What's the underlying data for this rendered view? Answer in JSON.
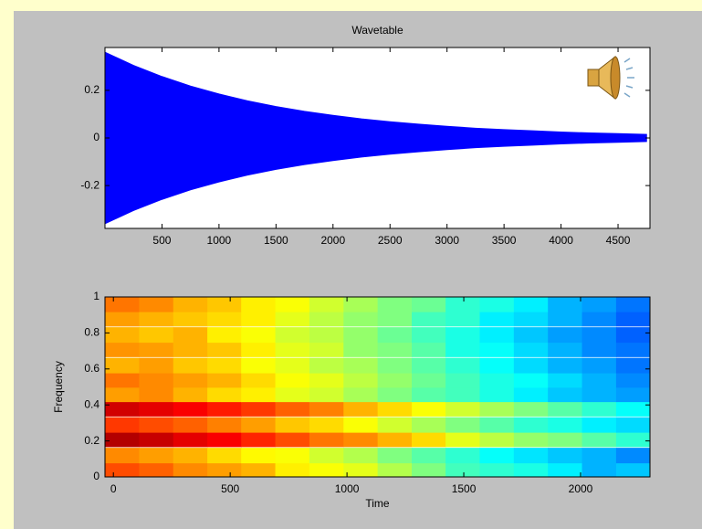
{
  "chart_data": [
    {
      "type": "line",
      "title": "Wavetable",
      "x": [
        0,
        250,
        500,
        750,
        1000,
        1250,
        1500,
        1750,
        2000,
        2250,
        2500,
        2750,
        3000,
        3250,
        3500,
        3750,
        4000,
        4250,
        4500,
        4750
      ],
      "series": [
        {
          "color": "#0000ff",
          "values": [
            0.36,
            0.305,
            0.258,
            0.218,
            0.185,
            0.156,
            0.132,
            0.112,
            0.095,
            0.08,
            0.068,
            0.058,
            0.049,
            0.041,
            0.035,
            0.03,
            0.025,
            0.021,
            0.018,
            0.015
          ]
        },
        {
          "color": "#0000ff",
          "values": [
            -0.36,
            -0.305,
            -0.258,
            -0.218,
            -0.185,
            -0.156,
            -0.132,
            -0.112,
            -0.095,
            -0.08,
            -0.068,
            -0.058,
            -0.049,
            -0.041,
            -0.035,
            -0.03,
            -0.025,
            -0.021,
            -0.018,
            -0.015
          ]
        }
      ],
      "xlim": [
        0,
        4780
      ],
      "ylim": [
        -0.38,
        0.38
      ],
      "xticks": [
        500,
        1000,
        1500,
        2000,
        2500,
        3000,
        3500,
        4000,
        4500
      ],
      "yticks": [
        -0.2,
        0,
        0.2
      ]
    },
    {
      "type": "heatmap",
      "xlabel": "Time",
      "ylabel": "Frequency",
      "x": [
        37,
        183,
        329,
        475,
        620,
        766,
        912,
        1058,
        1204,
        1350,
        1495,
        1641,
        1787,
        1933,
        2079,
        2225
      ],
      "y": [
        0.04,
        0.12,
        0.21,
        0.29,
        0.38,
        0.46,
        0.54,
        0.62,
        0.71,
        0.79,
        0.88,
        0.96
      ],
      "z": [
        [
          0.8,
          0.78,
          0.74,
          0.72,
          0.7,
          0.64,
          0.62,
          0.6,
          0.55,
          0.5,
          0.44,
          0.42,
          0.4,
          0.36,
          0.3,
          0.32
        ],
        [
          0.74,
          0.72,
          0.7,
          0.66,
          0.63,
          0.62,
          0.58,
          0.55,
          0.5,
          0.46,
          0.42,
          0.38,
          0.35,
          0.32,
          0.3,
          0.26
        ],
        [
          0.95,
          0.93,
          0.9,
          0.88,
          0.84,
          0.8,
          0.76,
          0.74,
          0.7,
          0.66,
          0.6,
          0.56,
          0.52,
          0.5,
          0.46,
          0.42
        ],
        [
          0.82,
          0.8,
          0.78,
          0.75,
          0.72,
          0.68,
          0.66,
          0.62,
          0.58,
          0.54,
          0.5,
          0.46,
          0.42,
          0.4,
          0.36,
          0.34
        ],
        [
          0.92,
          0.9,
          0.88,
          0.85,
          0.82,
          0.78,
          0.75,
          0.7,
          0.66,
          0.62,
          0.58,
          0.54,
          0.5,
          0.46,
          0.42,
          0.38
        ],
        [
          0.72,
          0.74,
          0.7,
          0.66,
          0.64,
          0.6,
          0.58,
          0.54,
          0.5,
          0.46,
          0.44,
          0.4,
          0.36,
          0.32,
          0.3,
          0.28
        ],
        [
          0.76,
          0.74,
          0.72,
          0.7,
          0.66,
          0.62,
          0.6,
          0.56,
          0.52,
          0.48,
          0.44,
          0.4,
          0.38,
          0.34,
          0.3,
          0.26
        ],
        [
          0.7,
          0.72,
          0.68,
          0.66,
          0.62,
          0.6,
          0.56,
          0.54,
          0.5,
          0.46,
          0.42,
          0.38,
          0.34,
          0.3,
          0.28,
          0.24
        ],
        [
          0.73,
          0.72,
          0.7,
          0.68,
          0.64,
          0.6,
          0.58,
          0.52,
          0.5,
          0.46,
          0.4,
          0.38,
          0.34,
          0.3,
          0.26,
          0.24
        ],
        [
          0.7,
          0.68,
          0.7,
          0.64,
          0.62,
          0.58,
          0.56,
          0.52,
          0.48,
          0.44,
          0.4,
          0.36,
          0.32,
          0.28,
          0.26,
          0.22
        ],
        [
          0.72,
          0.7,
          0.68,
          0.66,
          0.64,
          0.6,
          0.56,
          0.52,
          0.5,
          0.44,
          0.42,
          0.36,
          0.34,
          0.3,
          0.26,
          0.22
        ],
        [
          0.76,
          0.74,
          0.7,
          0.68,
          0.64,
          0.62,
          0.58,
          0.54,
          0.5,
          0.48,
          0.42,
          0.4,
          0.36,
          0.3,
          0.28,
          0.24
        ]
      ],
      "xlim": [
        -36,
        2297
      ],
      "ylim": [
        0,
        1
      ],
      "xticks": [
        0,
        500,
        1000,
        1500,
        2000
      ],
      "yticks": [
        0,
        0.2,
        0.4,
        0.6,
        0.8,
        1
      ]
    }
  ]
}
